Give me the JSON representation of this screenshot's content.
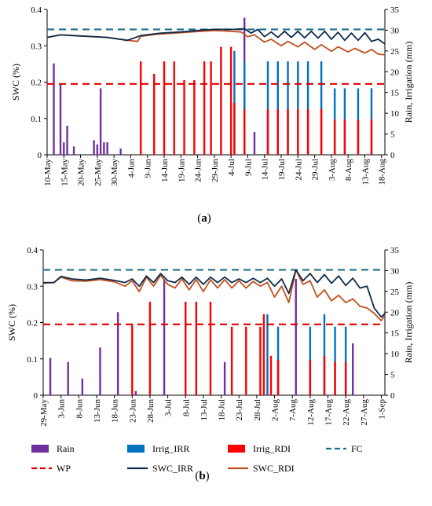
{
  "colors": {
    "rain": "#7030A0",
    "irr": "#0070C0",
    "rdi": "#FF0000",
    "fc": "#1F6F8B",
    "wp": "#E00000",
    "swc_irr": "#0D2B4A",
    "swc_rdi": "#C0501E"
  },
  "legend": [
    "Rain",
    "Irrig_IRR",
    "Irrig_RDI",
    "FC",
    "WP",
    "SWC_IRR",
    "SWC_RDI"
  ],
  "chart_data": [
    {
      "type": "bar",
      "panel": "(a)",
      "panel_letter": "a",
      "ylabel_left": "SWC (%)",
      "ylabel_right": "Rain, Irrigation (mm)",
      "yleft_range": [
        0,
        0.4
      ],
      "yleft_ticks": [
        "0",
        "0.1",
        "0.2",
        "0.3",
        "0.4"
      ],
      "yright_range": [
        0,
        35
      ],
      "yright_ticks": [
        "0",
        "5",
        "10",
        "15",
        "20",
        "25",
        "30",
        "35"
      ],
      "x_range": [
        0,
        101
      ],
      "x_ticks": [
        {
          "label": "10-May",
          "day": 0
        },
        {
          "label": "15-May",
          "day": 5
        },
        {
          "label": "20-May",
          "day": 10
        },
        {
          "label": "25-May",
          "day": 15
        },
        {
          "label": "30-May",
          "day": 20
        },
        {
          "label": "4-Jun",
          "day": 25
        },
        {
          "label": "9-Jun",
          "day": 30
        },
        {
          "label": "14-Jun",
          "day": 35
        },
        {
          "label": "19-Jun",
          "day": 40
        },
        {
          "label": "24-Jun",
          "day": 45
        },
        {
          "label": "29-Jun",
          "day": 50
        },
        {
          "label": "4-Jul",
          "day": 55
        },
        {
          "label": "9-Jul",
          "day": 60
        },
        {
          "label": "14-Jul",
          "day": 65
        },
        {
          "label": "19-Jul",
          "day": 70
        },
        {
          "label": "24-Jul",
          "day": 75
        },
        {
          "label": "29-Jul",
          "day": 80
        },
        {
          "label": "3-Aug",
          "day": 85
        },
        {
          "label": "8-Aug",
          "day": 90
        },
        {
          "label": "13-Aug",
          "day": 95
        },
        {
          "label": "18-Aug",
          "day": 100
        }
      ],
      "fc": 0.345,
      "wp": 0.195,
      "rain": [
        [
          2,
          22
        ],
        [
          4,
          17
        ],
        [
          5,
          3
        ],
        [
          6,
          7
        ],
        [
          8,
          2
        ],
        [
          14,
          3.5
        ],
        [
          15,
          2.5
        ],
        [
          16,
          16
        ],
        [
          17,
          3
        ],
        [
          18,
          3
        ],
        [
          22,
          1.5
        ],
        [
          59,
          33
        ],
        [
          62,
          5.5
        ]
      ],
      "irrig_irr": [
        [
          56,
          25
        ],
        [
          59,
          22.5
        ],
        [
          66,
          22.5
        ],
        [
          69,
          22.5
        ],
        [
          72,
          22.5
        ],
        [
          75,
          22.5
        ],
        [
          78,
          22.5
        ],
        [
          82,
          22.5
        ],
        [
          86,
          16
        ],
        [
          89,
          16
        ],
        [
          93,
          16
        ],
        [
          97,
          16
        ]
      ],
      "irrig_rdi": [
        [
          28,
          22.5
        ],
        [
          32,
          19.5
        ],
        [
          35,
          22.5
        ],
        [
          38,
          22.5
        ],
        [
          41,
          18
        ],
        [
          44,
          18
        ],
        [
          47,
          22.5
        ],
        [
          49,
          22.5
        ],
        [
          52,
          26
        ],
        [
          55,
          26
        ],
        [
          56,
          12.5
        ],
        [
          59,
          11
        ],
        [
          66,
          11
        ],
        [
          69,
          11
        ],
        [
          72,
          11
        ],
        [
          75,
          11
        ],
        [
          78,
          11
        ],
        [
          82,
          11
        ],
        [
          86,
          8.5
        ],
        [
          89,
          8.5
        ],
        [
          93,
          8.5
        ],
        [
          97,
          8.5
        ]
      ],
      "swc_irr": [
        [
          0,
          0.323
        ],
        [
          4,
          0.33
        ],
        [
          10,
          0.327
        ],
        [
          18,
          0.323
        ],
        [
          24,
          0.315
        ],
        [
          28,
          0.328
        ],
        [
          34,
          0.335
        ],
        [
          40,
          0.338
        ],
        [
          46,
          0.343
        ],
        [
          50,
          0.345
        ],
        [
          56,
          0.345
        ],
        [
          59,
          0.347
        ],
        [
          61,
          0.335
        ],
        [
          63,
          0.345
        ],
        [
          65,
          0.325
        ],
        [
          67,
          0.338
        ],
        [
          69,
          0.323
        ],
        [
          71,
          0.34
        ],
        [
          73,
          0.323
        ],
        [
          75,
          0.34
        ],
        [
          77,
          0.322
        ],
        [
          79,
          0.34
        ],
        [
          81,
          0.321
        ],
        [
          83,
          0.34
        ],
        [
          85,
          0.318
        ],
        [
          87,
          0.337
        ],
        [
          89,
          0.315
        ],
        [
          91,
          0.335
        ],
        [
          93,
          0.315
        ],
        [
          95,
          0.336
        ],
        [
          97,
          0.312
        ],
        [
          99,
          0.318
        ],
        [
          101,
          0.305
        ]
      ],
      "swc_rdi": [
        [
          0,
          0.323
        ],
        [
          4,
          0.33
        ],
        [
          10,
          0.327
        ],
        [
          18,
          0.323
        ],
        [
          24,
          0.315
        ],
        [
          27,
          0.312
        ],
        [
          28,
          0.326
        ],
        [
          33,
          0.332
        ],
        [
          40,
          0.336
        ],
        [
          46,
          0.34
        ],
        [
          50,
          0.342
        ],
        [
          55,
          0.34
        ],
        [
          58,
          0.338
        ],
        [
          60,
          0.325
        ],
        [
          62,
          0.33
        ],
        [
          65,
          0.31
        ],
        [
          67,
          0.318
        ],
        [
          70,
          0.3
        ],
        [
          72,
          0.312
        ],
        [
          75,
          0.297
        ],
        [
          77,
          0.31
        ],
        [
          80,
          0.29
        ],
        [
          82,
          0.303
        ],
        [
          85,
          0.285
        ],
        [
          87,
          0.297
        ],
        [
          90,
          0.283
        ],
        [
          92,
          0.293
        ],
        [
          95,
          0.28
        ],
        [
          97,
          0.29
        ],
        [
          99,
          0.277
        ],
        [
          101,
          0.275
        ]
      ]
    },
    {
      "type": "bar",
      "panel": "(b)",
      "panel_letter": "b",
      "ylabel_left": "SWC (%)",
      "ylabel_right": "Rain, Irrigation (mm)",
      "yleft_range": [
        0,
        0.4
      ],
      "yleft_ticks": [
        "0",
        "0.1",
        "0.2",
        "0.3",
        "0.4"
      ],
      "yright_range": [
        0,
        35
      ],
      "yright_ticks": [
        "0",
        "5",
        "10",
        "15",
        "20",
        "25",
        "30",
        "35"
      ],
      "x_range": [
        0,
        96
      ],
      "x_ticks": [
        {
          "label": "29-May",
          "day": 0
        },
        {
          "label": "3-Jun",
          "day": 5
        },
        {
          "label": "8-Jun",
          "day": 10
        },
        {
          "label": "13-Jun",
          "day": 15
        },
        {
          "label": "18-Jun",
          "day": 20
        },
        {
          "label": "23-Jun",
          "day": 25
        },
        {
          "label": "28-Jun",
          "day": 30
        },
        {
          "label": "3-Jul",
          "day": 35
        },
        {
          "label": "8-Jul",
          "day": 40
        },
        {
          "label": "13-Jul",
          "day": 45
        },
        {
          "label": "18-Jul",
          "day": 50
        },
        {
          "label": "23-Jul",
          "day": 55
        },
        {
          "label": "28-Jul",
          "day": 60
        },
        {
          "label": "2-Aug",
          "day": 65
        },
        {
          "label": "7-Aug",
          "day": 70
        },
        {
          "label": "12-Aug",
          "day": 75
        },
        {
          "label": "17-Aug",
          "day": 80
        },
        {
          "label": "22-Aug",
          "day": 85
        },
        {
          "label": "27-Aug",
          "day": 90
        },
        {
          "label": "1-Sep",
          "day": 95
        }
      ],
      "fc": 0.345,
      "wp": 0.195,
      "rain": [
        [
          2,
          9
        ],
        [
          7,
          8
        ],
        [
          11,
          4
        ],
        [
          16,
          11.5
        ],
        [
          21,
          20
        ],
        [
          26,
          1
        ],
        [
          34,
          28
        ],
        [
          51,
          8
        ],
        [
          71,
          28
        ],
        [
          87,
          12.5
        ]
      ],
      "irrig_irr": [
        [
          63,
          19.5
        ],
        [
          66,
          16.5
        ],
        [
          75,
          16.5
        ],
        [
          79,
          19.5
        ],
        [
          82,
          16.5
        ],
        [
          85,
          16.5
        ]
      ],
      "irrig_rdi": [
        [
          25,
          17
        ],
        [
          30,
          22.5
        ],
        [
          40,
          22.5
        ],
        [
          43,
          22.5
        ],
        [
          47,
          22.5
        ],
        [
          53,
          16.5
        ],
        [
          57,
          16.5
        ],
        [
          61,
          16.5
        ],
        [
          62,
          19.5
        ],
        [
          64,
          9.5
        ],
        [
          66,
          8.5
        ],
        [
          75,
          8.5
        ],
        [
          79,
          9.5
        ],
        [
          82,
          8
        ],
        [
          85,
          8
        ]
      ],
      "swc_irr": [
        [
          0,
          0.31
        ],
        [
          3,
          0.31
        ],
        [
          5,
          0.327
        ],
        [
          8,
          0.32
        ],
        [
          12,
          0.317
        ],
        [
          16,
          0.322
        ],
        [
          20,
          0.316
        ],
        [
          23,
          0.31
        ],
        [
          25,
          0.32
        ],
        [
          27,
          0.3
        ],
        [
          29,
          0.328
        ],
        [
          31,
          0.31
        ],
        [
          33,
          0.335
        ],
        [
          35,
          0.315
        ],
        [
          37,
          0.31
        ],
        [
          39,
          0.325
        ],
        [
          41,
          0.305
        ],
        [
          43,
          0.325
        ],
        [
          45,
          0.305
        ],
        [
          47,
          0.325
        ],
        [
          49,
          0.31
        ],
        [
          51,
          0.325
        ],
        [
          53,
          0.31
        ],
        [
          55,
          0.32
        ],
        [
          57,
          0.31
        ],
        [
          59,
          0.322
        ],
        [
          61,
          0.31
        ],
        [
          63,
          0.322
        ],
        [
          65,
          0.3
        ],
        [
          67,
          0.32
        ],
        [
          69,
          0.28
        ],
        [
          71,
          0.345
        ],
        [
          73,
          0.315
        ],
        [
          75,
          0.335
        ],
        [
          77,
          0.31
        ],
        [
          79,
          0.332
        ],
        [
          81,
          0.308
        ],
        [
          83,
          0.328
        ],
        [
          85,
          0.302
        ],
        [
          87,
          0.322
        ],
        [
          89,
          0.295
        ],
        [
          91,
          0.3
        ],
        [
          93,
          0.24
        ],
        [
          95,
          0.215
        ],
        [
          96,
          0.225
        ]
      ],
      "swc_rdi": [
        [
          0,
          0.308
        ],
        [
          3,
          0.31
        ],
        [
          5,
          0.325
        ],
        [
          8,
          0.315
        ],
        [
          12,
          0.314
        ],
        [
          16,
          0.318
        ],
        [
          20,
          0.312
        ],
        [
          23,
          0.3
        ],
        [
          25,
          0.315
        ],
        [
          27,
          0.285
        ],
        [
          29,
          0.325
        ],
        [
          31,
          0.3
        ],
        [
          33,
          0.33
        ],
        [
          35,
          0.305
        ],
        [
          37,
          0.295
        ],
        [
          39,
          0.32
        ],
        [
          41,
          0.29
        ],
        [
          43,
          0.318
        ],
        [
          45,
          0.285
        ],
        [
          47,
          0.318
        ],
        [
          49,
          0.295
        ],
        [
          51,
          0.318
        ],
        [
          53,
          0.295
        ],
        [
          55,
          0.315
        ],
        [
          57,
          0.295
        ],
        [
          59,
          0.313
        ],
        [
          61,
          0.3
        ],
        [
          63,
          0.31
        ],
        [
          65,
          0.27
        ],
        [
          67,
          0.3
        ],
        [
          69,
          0.255
        ],
        [
          71,
          0.345
        ],
        [
          73,
          0.305
        ],
        [
          75,
          0.315
        ],
        [
          77,
          0.27
        ],
        [
          79,
          0.29
        ],
        [
          81,
          0.26
        ],
        [
          83,
          0.275
        ],
        [
          85,
          0.255
        ],
        [
          87,
          0.265
        ],
        [
          89,
          0.245
        ],
        [
          91,
          0.24
        ],
        [
          93,
          0.225
        ],
        [
          95,
          0.205
        ],
        [
          96,
          0.22
        ]
      ]
    }
  ]
}
